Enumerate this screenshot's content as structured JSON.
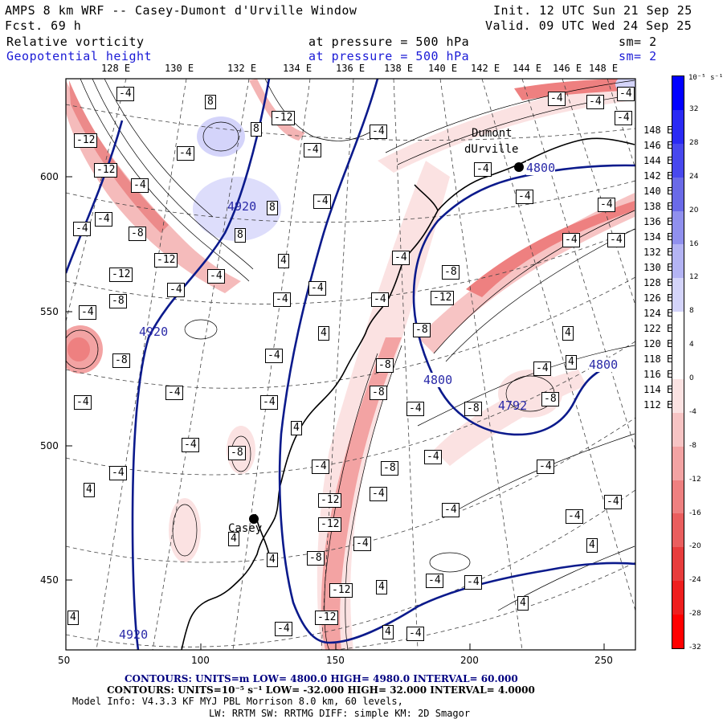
{
  "header": {
    "title": "AMPS 8 km WRF -- Casey-Dumont d'Urville Window",
    "init": "Init. 12 UTC Sun 21 Sep 25",
    "fcst": "Fcst.   69 h",
    "valid": "Valid. 09 UTC Wed 24 Sep 25",
    "field1_name": "Relative vorticity",
    "field1_level": "at pressure =  500 hPa",
    "field1_sm": "sm= 2",
    "field2_name": "Geopotential height",
    "field2_level": "at pressure =  500 hPa",
    "field2_sm": "sm= 2"
  },
  "map": {
    "top_lon_labels": [
      "128 E",
      "130 E",
      "132 E",
      "134 E",
      "136 E",
      "138 E",
      "140 E",
      "142 E",
      "144 E",
      "146 E",
      "148 E"
    ],
    "right_lon_labels": [
      "148 E",
      "146 E",
      "144 E",
      "142 E",
      "140 E",
      "138 E",
      "136 E",
      "134 E",
      "132 E",
      "130 E",
      "128 E",
      "126 E",
      "124 E",
      "122 E",
      "120 E",
      "118 E",
      "116 E",
      "114 E",
      "112 E"
    ],
    "x_ticks": [
      "50",
      "100",
      "150",
      "200",
      "250"
    ],
    "y_ticks": [
      "600",
      "550",
      "500",
      "450"
    ],
    "stations": [
      {
        "name": "Casey"
      },
      {
        "name_line1": "Dumont",
        "name_line2": "dUrville"
      }
    ],
    "height_labels": [
      "4920",
      "4920",
      "4920",
      "4800",
      "4800",
      "4800",
      "4792"
    ],
    "vort_labels": [
      "-4",
      "-8",
      "-12",
      "4",
      "8"
    ]
  },
  "colorbar": {
    "unit_label": "10⁻⁵ s⁻¹",
    "levels": [
      "32",
      "28",
      "24",
      "20",
      "16",
      "12",
      "8",
      "4",
      "0",
      "-4",
      "-8",
      "-12",
      "-16",
      "-20",
      "-24",
      "-28",
      "-32"
    ],
    "colors": [
      "#0000ff",
      "#2a2af4",
      "#4848ee",
      "#6a6ae8",
      "#9090ee",
      "#b4b4f4",
      "#d4d4fa",
      "#ffffff",
      "#ffffff",
      "#fbe2e2",
      "#f7c4c4",
      "#f3a3a3",
      "#ee8080",
      "#ea5e5e",
      "#e83c3c",
      "#ee1e1e",
      "#ff0000"
    ]
  },
  "footer": {
    "contours1": "CONTOURS:  UNITS=m  LOW=  4800.0       HIGH=  4980.0       INTERVAL=   60.000",
    "contours2": "CONTOURS:  UNITS=10⁻⁵ s⁻¹   LOW= -32.000       HIGH=  32.000       INTERVAL=   4.0000",
    "model_info": "Model Info: V4.3.3    KF      MYJ PBL  Morrison          8.0 km,  60 levels,",
    "physics": "LW: RRTM SW: RRTMG   DIFF: simple KM: 2D Smagor"
  }
}
